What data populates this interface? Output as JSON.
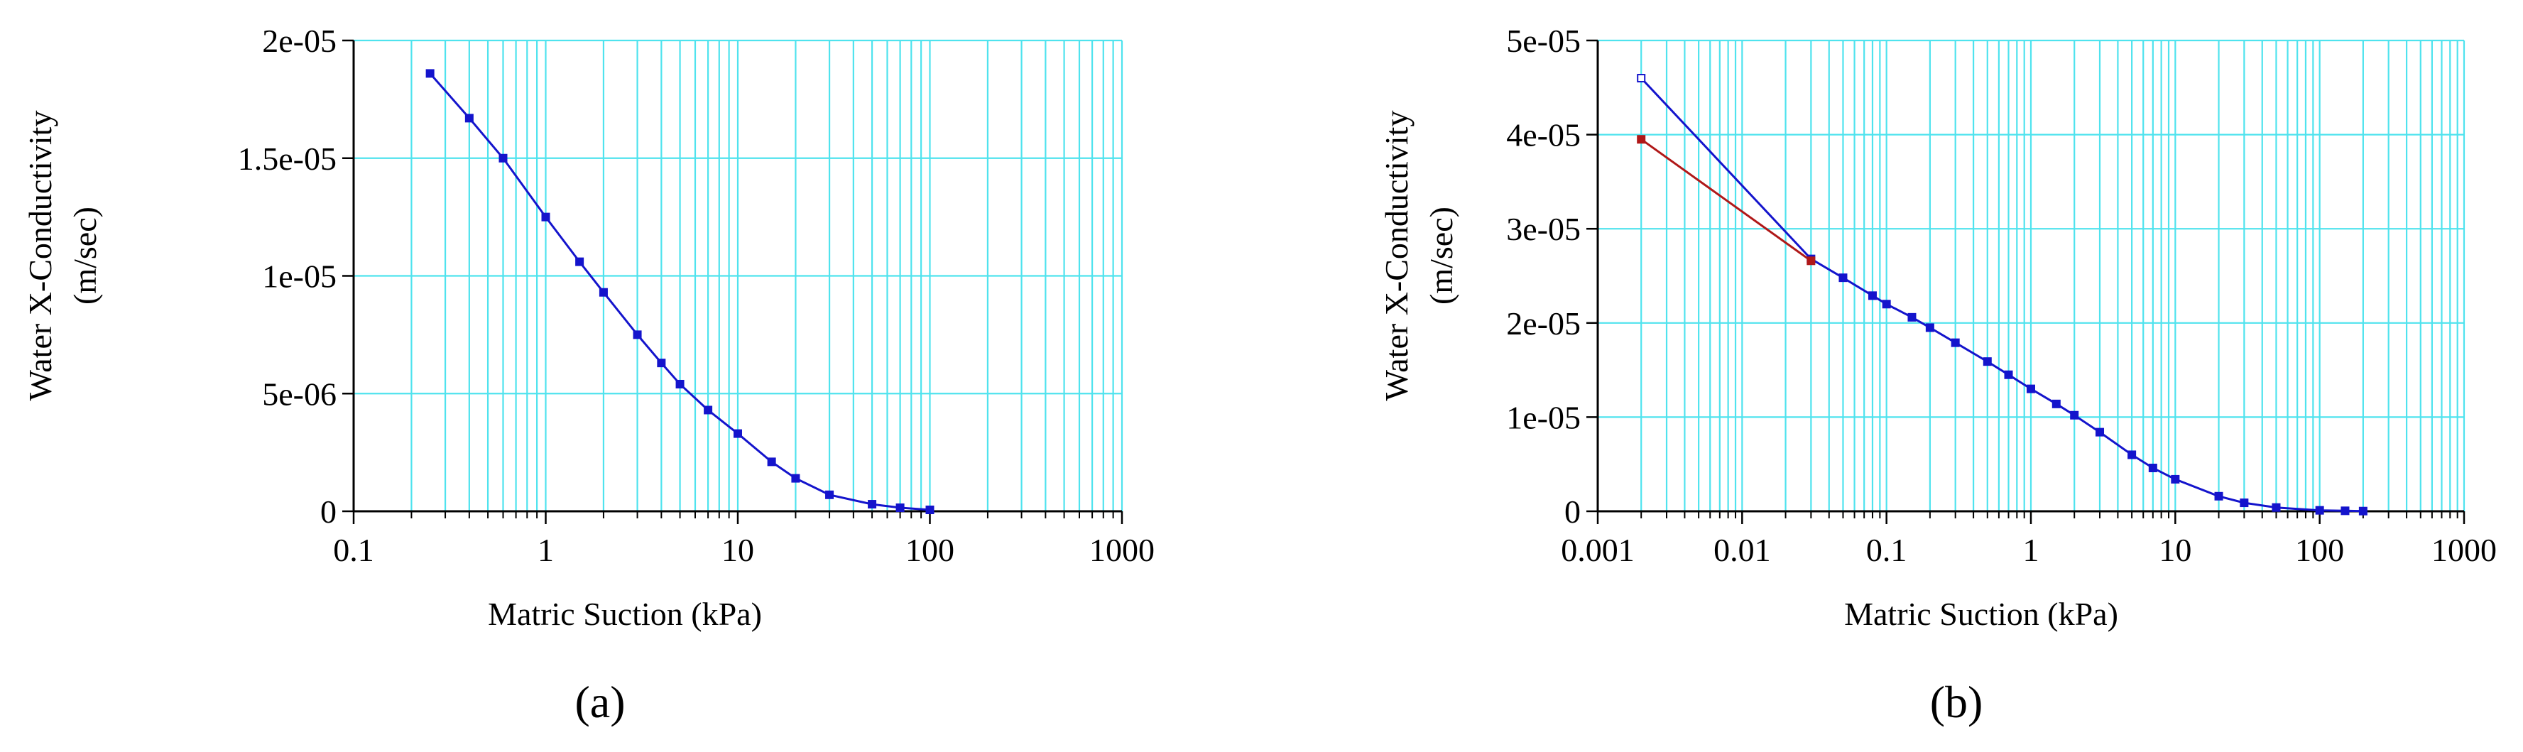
{
  "chart_data": [
    {
      "type": "line",
      "panel_label": "(a)",
      "xlabel": "Matric Suction (kPa)",
      "ylabel": "Water X-Conductivity",
      "ylabel_unit": "(m/sec)",
      "x_scale": "log",
      "xlim": [
        0.1,
        1000
      ],
      "ylim": [
        0,
        2e-05
      ],
      "grid": true,
      "x_ticks": [
        {
          "value": 0.1,
          "label": "0.1"
        },
        {
          "value": 1,
          "label": "1"
        },
        {
          "value": 10,
          "label": "10"
        },
        {
          "value": 100,
          "label": "100"
        },
        {
          "value": 1000,
          "label": "1000"
        }
      ],
      "y_ticks": [
        {
          "value": 0,
          "label": "0"
        },
        {
          "value": 5e-06,
          "label": "5e-06"
        },
        {
          "value": 1e-05,
          "label": "1e-05"
        },
        {
          "value": 1.5e-05,
          "label": "1.5e-05"
        },
        {
          "value": 2e-05,
          "label": "2e-05"
        }
      ],
      "series": [
        {
          "color": "#1414cc",
          "x": [
            0.25,
            0.4,
            0.6,
            1,
            1.5,
            2,
            3,
            4,
            5,
            7,
            10,
            15,
            20,
            30,
            50,
            70,
            100
          ],
          "values": [
            1.86e-05,
            1.67e-05,
            1.5e-05,
            1.25e-05,
            1.06e-05,
            9.3e-06,
            7.5e-06,
            6.3e-06,
            5.4e-06,
            4.3e-06,
            3.3e-06,
            2.1e-06,
            1.4e-06,
            7e-07,
            3e-07,
            1.5e-07,
            6e-08
          ]
        }
      ]
    },
    {
      "type": "line",
      "panel_label": "(b)",
      "xlabel": "Matric Suction (kPa)",
      "ylabel": "Water X-Conductivity",
      "ylabel_unit": "(m/sec)",
      "x_scale": "log",
      "xlim": [
        0.001,
        1000
      ],
      "ylim": [
        0,
        5e-05
      ],
      "grid": true,
      "x_ticks": [
        {
          "value": 0.001,
          "label": "0.001"
        },
        {
          "value": 0.01,
          "label": "0.01"
        },
        {
          "value": 0.1,
          "label": "0.1"
        },
        {
          "value": 1,
          "label": "1"
        },
        {
          "value": 10,
          "label": "10"
        },
        {
          "value": 100,
          "label": "100"
        },
        {
          "value": 1000,
          "label": "1000"
        }
      ],
      "y_ticks": [
        {
          "value": 0,
          "label": "0"
        },
        {
          "value": 1e-05,
          "label": "1e-05"
        },
        {
          "value": 2e-05,
          "label": "2e-05"
        },
        {
          "value": 3e-05,
          "label": "3e-05"
        },
        {
          "value": 4e-05,
          "label": "4e-05"
        },
        {
          "value": 5e-05,
          "label": "5e-05"
        }
      ],
      "series": [
        {
          "color": "#1414cc",
          "x": [
            0.002,
            0.03,
            0.05,
            0.08,
            0.1,
            0.15,
            0.2,
            0.3,
            0.5,
            0.7,
            1,
            1.5,
            2,
            3,
            5,
            7,
            10,
            20,
            30,
            50,
            100,
            150,
            200
          ],
          "values": [
            4.6e-05,
            2.68e-05,
            2.48e-05,
            2.29e-05,
            2.2e-05,
            2.06e-05,
            1.95e-05,
            1.79e-05,
            1.59e-05,
            1.45e-05,
            1.3e-05,
            1.14e-05,
            1.02e-05,
            8.4e-06,
            6e-06,
            4.6e-06,
            3.4e-06,
            1.6e-06,
            9e-07,
            4e-07,
            1e-07,
            5e-08,
            2e-08
          ]
        },
        {
          "color": "#b01818",
          "x": [
            0.002,
            0.03
          ],
          "values": [
            3.95e-05,
            2.66e-05
          ]
        }
      ]
    }
  ]
}
